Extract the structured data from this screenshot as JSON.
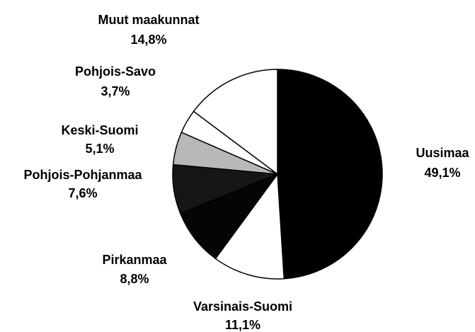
{
  "chart_data": {
    "type": "pie",
    "categories": [
      "Uusimaa",
      "Varsinais-Suomi",
      "Pirkanmaa",
      "Pohjois-Pohjanmaa",
      "Keski-Suomi",
      "Pohjois-Savo",
      "Muut maakunnat"
    ],
    "values": [
      49.1,
      11.1,
      8.8,
      7.6,
      5.1,
      3.7,
      14.8
    ],
    "value_labels": [
      "49,1%",
      "11,1%",
      "8,8%",
      "7,6%",
      "5,1%",
      "3,7%",
      "14,8%"
    ],
    "colors": [
      "#000000",
      "#ffffff",
      "#050505",
      "#161616",
      "#b8b8b8",
      "#ffffff",
      "#ffffff"
    ]
  }
}
